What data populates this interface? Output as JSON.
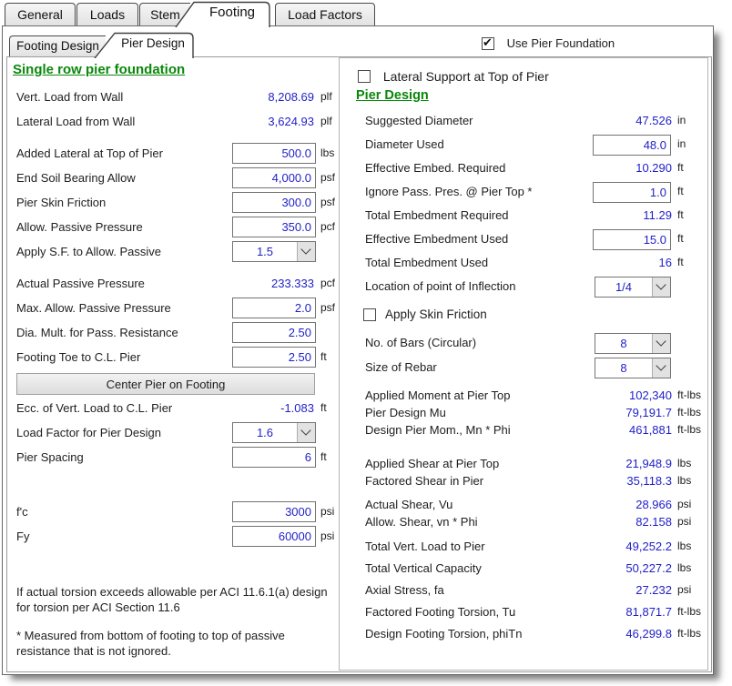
{
  "colors": {
    "value_blue": "#1f1fc8",
    "heading_green": "#0a870a"
  },
  "main_tabs": {
    "items": [
      {
        "label": "General",
        "active": false
      },
      {
        "label": "Loads",
        "active": false
      },
      {
        "label": "Stem",
        "active": false
      },
      {
        "label": "Footing",
        "active": true
      },
      {
        "label": "Load Factors",
        "active": false
      }
    ]
  },
  "sub_tabs": {
    "items": [
      {
        "label": "Footing Design",
        "active": false
      },
      {
        "label": "Pier Design",
        "active": true
      }
    ]
  },
  "header": {
    "use_pier_foundation": {
      "label": "Use Pier Foundation",
      "checked": true
    }
  },
  "left_panel": {
    "heading": "Single row pier foundation",
    "groups": [
      {
        "rows": [
          {
            "type": "static",
            "label": "Vert. Load from Wall",
            "value": "8,208.69",
            "unit": "plf"
          },
          {
            "type": "static",
            "label": "Lateral Load from Wall",
            "value": "3,624.93",
            "unit": "plf"
          }
        ]
      },
      {
        "rows": [
          {
            "type": "input",
            "label": "Added Lateral at Top of Pier",
            "value": "500.0",
            "unit": "lbs"
          },
          {
            "type": "input",
            "label": "End Soil Bearing Allow",
            "value": "4,000.0",
            "unit": "psf"
          },
          {
            "type": "input",
            "label": "Pier Skin Friction",
            "value": "300.0",
            "unit": "psf"
          },
          {
            "type": "input",
            "label": "Allow. Passive Pressure",
            "value": "350.0",
            "unit": "pcf"
          },
          {
            "type": "combo",
            "label": "Apply S.F. to Allow. Passive",
            "value": "1.5",
            "unit": ""
          }
        ]
      },
      {
        "rows": [
          {
            "type": "static",
            "label": "Actual Passive Pressure",
            "value": "233.333",
            "unit": "pcf"
          },
          {
            "type": "input",
            "label": "Max. Allow. Passive Pressure",
            "value": "2.0",
            "unit": "psf"
          },
          {
            "type": "input",
            "label": "Dia. Mult. for Pass. Resistance",
            "value": "2.50",
            "unit": ""
          },
          {
            "type": "input",
            "label": "Footing Toe to C.L. Pier",
            "value": "2.50",
            "unit": "ft"
          }
        ]
      },
      {
        "rows": [
          {
            "type": "button",
            "label": "Center Pier on Footing"
          }
        ]
      },
      {
        "rows": [
          {
            "type": "static",
            "label": "Ecc. of Vert. Load to C.L. Pier",
            "value": "-1.083",
            "unit": "ft"
          },
          {
            "type": "combo",
            "label": "Load Factor for Pier Design",
            "value": "1.6",
            "unit": ""
          },
          {
            "type": "input",
            "label": "Pier Spacing",
            "value": "6",
            "unit": "ft"
          }
        ]
      },
      {
        "rows": [
          {
            "type": "input",
            "label": "f'c",
            "value": "3000",
            "unit": "psi"
          },
          {
            "type": "input",
            "label": "Fy",
            "value": "60000",
            "unit": "psi"
          }
        ]
      }
    ],
    "notes": [
      "If actual torsion exceeds allowable per ACI 11.6.1(a) design for torsion per ACI Section 11.6",
      "* Measured from bottom of footing to top of passive resistance that is not ignored."
    ]
  },
  "right_panel": {
    "lateral_support_checkbox": {
      "label": "Lateral Support at Top of Pier",
      "checked": false
    },
    "heading": "Pier Design",
    "groups": [
      {
        "rows": [
          {
            "type": "static",
            "label": "Suggested Diameter",
            "value": "47.526",
            "unit": "in"
          },
          {
            "type": "input",
            "label": "Diameter Used",
            "value": "48.0",
            "unit": "in"
          },
          {
            "type": "static",
            "label": "Effective Embed. Required",
            "value": "10.290",
            "unit": "ft"
          },
          {
            "type": "input",
            "label": "Ignore Pass. Pres. @ Pier Top *",
            "value": "1.0",
            "unit": "ft"
          },
          {
            "type": "static",
            "label": "Total Embedment Required",
            "value": "11.29",
            "unit": "ft"
          },
          {
            "type": "input",
            "label": "Effective Embedment Used",
            "value": "15.0",
            "unit": "ft"
          },
          {
            "type": "static",
            "label": "Total Embedment Used",
            "value": "16",
            "unit": "ft"
          },
          {
            "type": "combo",
            "label": "Location of point of Inflection",
            "value": "1/4",
            "unit": ""
          }
        ]
      },
      {
        "rows": [
          {
            "type": "check",
            "label": "Apply Skin Friction",
            "checked": false
          }
        ]
      },
      {
        "rows": [
          {
            "type": "combo",
            "label": "No. of Bars (Circular)",
            "value": "8",
            "unit": ""
          },
          {
            "type": "combo",
            "label": "Size of Rebar",
            "value": "8",
            "unit": ""
          }
        ]
      },
      {
        "rows": [
          {
            "type": "static",
            "label": "Applied Moment at Pier Top",
            "value": "102,340",
            "unit": "ft-lbs"
          },
          {
            "type": "static",
            "label": "Pier Design Mu",
            "value": "79,191.7",
            "unit": "ft-lbs"
          },
          {
            "type": "static",
            "label": "Design Pier Mom., Mn * Phi",
            "value": "461,881",
            "unit": "ft-lbs"
          }
        ]
      },
      {
        "rows": [
          {
            "type": "static",
            "label": "Applied Shear at Pier Top",
            "value": "21,948.9",
            "unit": "lbs"
          },
          {
            "type": "static",
            "label": "Factored Shear in Pier",
            "value": "35,118.3",
            "unit": "lbs"
          }
        ]
      },
      {
        "rows": [
          {
            "type": "static",
            "label": "Actual Shear, Vu",
            "value": "28.966",
            "unit": "psi"
          },
          {
            "type": "static",
            "label": "Allow. Shear, vn * Phi",
            "value": "82.158",
            "unit": "psi"
          }
        ]
      },
      {
        "rows": [
          {
            "type": "static",
            "label": "Total Vert. Load to Pier",
            "value": "49,252.2",
            "unit": "lbs"
          },
          {
            "type": "static",
            "label": "Total Vertical Capacity",
            "value": "50,227.2",
            "unit": "lbs"
          },
          {
            "type": "static",
            "label": "Axial Stress, fa",
            "value": "27.232",
            "unit": "psi"
          },
          {
            "type": "static",
            "label": "Factored Footing Torsion, Tu",
            "value": "81,871.7",
            "unit": "ft-lbs"
          },
          {
            "type": "static",
            "label": "Design Footing Torsion, phiTn",
            "value": "46,299.8",
            "unit": "ft-lbs"
          }
        ]
      }
    ]
  }
}
